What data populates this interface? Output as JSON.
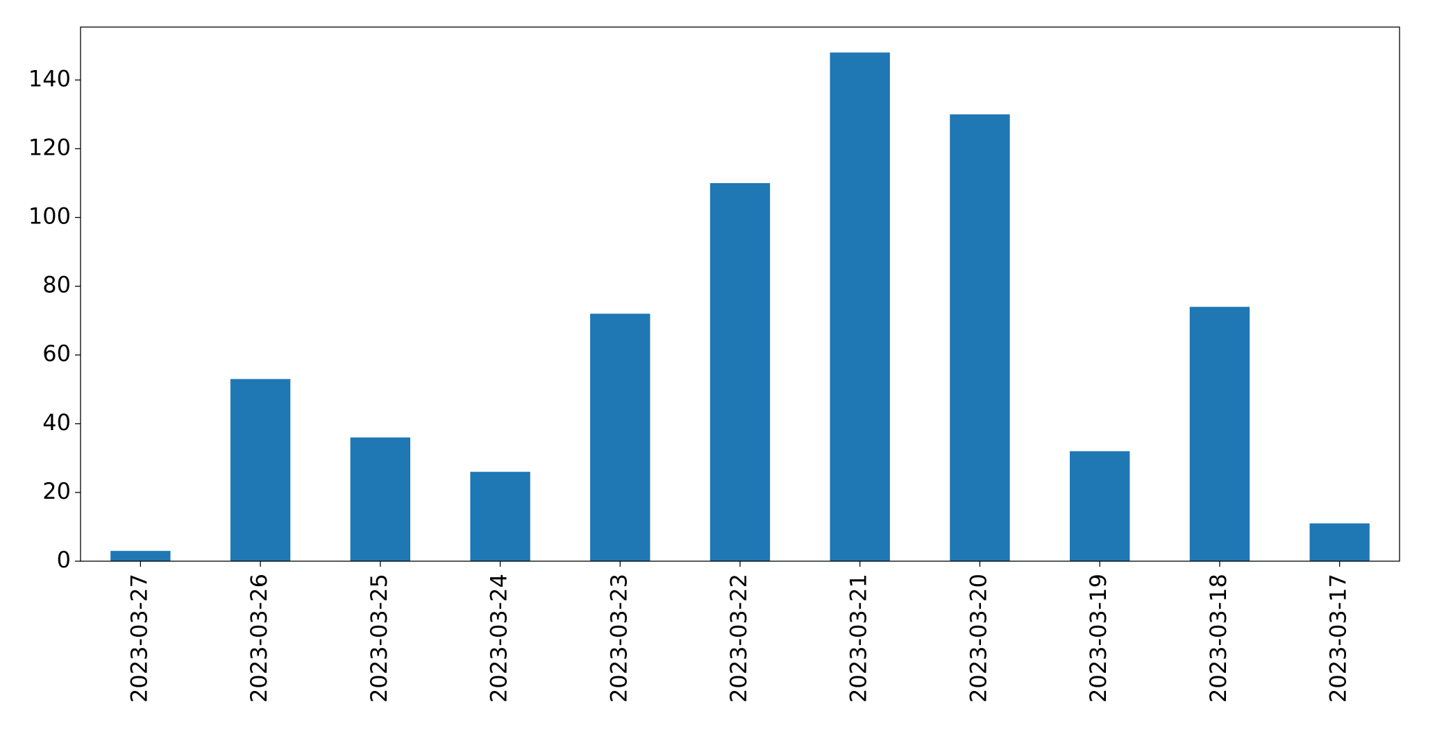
{
  "chart_data": {
    "type": "bar",
    "categories": [
      "2023-03-27",
      "2023-03-26",
      "2023-03-25",
      "2023-03-24",
      "2023-03-23",
      "2023-03-22",
      "2023-03-21",
      "2023-03-20",
      "2023-03-19",
      "2023-03-18",
      "2023-03-17"
    ],
    "values": [
      3,
      53,
      36,
      26,
      72,
      110,
      148,
      130,
      32,
      74,
      11
    ],
    "color": "#1f77b4",
    "ylim": [
      0,
      155.4
    ],
    "yticks": [
      0,
      20,
      40,
      60,
      80,
      100,
      120,
      140
    ],
    "grid": false
  }
}
